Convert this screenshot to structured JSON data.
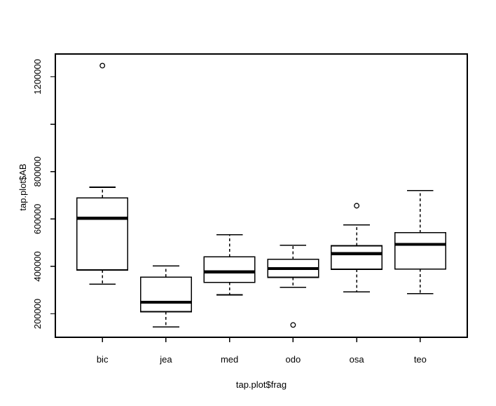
{
  "figure": {
    "background": "#ffffff",
    "line_color": "#000000",
    "text_color": "#000000"
  },
  "chart_data": {
    "type": "boxplot",
    "title": "",
    "xlabel": "tap.plot$frag",
    "ylabel": "tap.plot$AB",
    "categories": [
      "bic",
      "jea",
      "med",
      "odo",
      "osa",
      "teo"
    ],
    "ylim": [
      101000,
      1296000
    ],
    "grid": false,
    "legend": "none",
    "y_ticks": [
      {
        "value": 200000,
        "label": "200000"
      },
      {
        "value": 400000,
        "label": "400000"
      },
      {
        "value": 600000,
        "label": "600000"
      },
      {
        "value": 800000,
        "label": "800000"
      },
      {
        "value": 1000000,
        "label": ""
      },
      {
        "value": 1200000,
        "label": "1200000"
      }
    ],
    "boxes": [
      {
        "category": "bic",
        "whisker_low": 325000,
        "q1": 385000,
        "median": 603000,
        "q3": 689000,
        "whisker_high": 734000,
        "outliers": [
          1247000
        ]
      },
      {
        "category": "jea",
        "whisker_low": 145000,
        "q1": 209000,
        "median": 249000,
        "q3": 355000,
        "whisker_high": 402000,
        "outliers": []
      },
      {
        "category": "med",
        "whisker_low": 280000,
        "q1": 333000,
        "median": 377000,
        "q3": 440000,
        "whisker_high": 534000,
        "outliers": []
      },
      {
        "category": "odo",
        "whisker_low": 312000,
        "q1": 354000,
        "median": 391000,
        "q3": 430000,
        "whisker_high": 489000,
        "outliers": [
          153000
        ]
      },
      {
        "category": "osa",
        "whisker_low": 292000,
        "q1": 388000,
        "median": 454000,
        "q3": 487000,
        "whisker_high": 575000,
        "outliers": [
          656000
        ]
      },
      {
        "category": "teo",
        "whisker_low": 285000,
        "q1": 389000,
        "median": 493000,
        "q3": 542000,
        "whisker_high": 720000,
        "outliers": []
      }
    ]
  }
}
